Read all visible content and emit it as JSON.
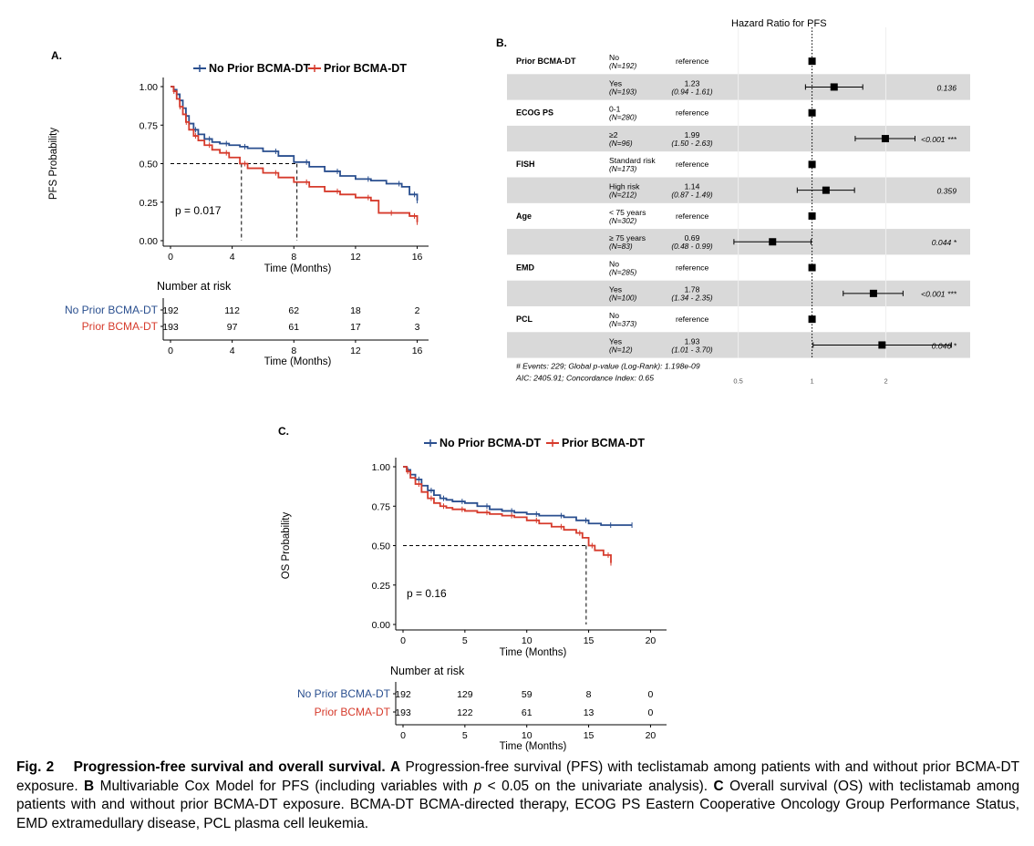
{
  "colors": {
    "no_prior": "#2a4f8f",
    "prior": "#d63b2c",
    "band": "#d9d9d9"
  },
  "caption": {
    "fig_label": "Fig. 2",
    "title": "Progression-free survival and overall survival.",
    "a_letter": "A",
    "a_text": "Progression-free survival (PFS) with teclistamab among patients with and without prior BCMA-DT exposure.",
    "b_letter": "B",
    "b_text_1": "Multivariable Cox Model for PFS (including variables with",
    "p_symbol": "p",
    "b_text_2": "< 0.05 on the univariate analysis).",
    "c_letter": "C",
    "c_text": "Overall survival (OS) with teclistamab among patients with and without prior BCMA-DT exposure. BCMA-DT BCMA-directed therapy, ECOG PS Eastern Cooperative Oncology Group Performance Status, EMD extramedullary disease, PCL plasma cell leukemia."
  },
  "chart_data": [
    {
      "type": "line",
      "panel_label": "A.",
      "ylabel": "PFS Probability",
      "xlabel": "Time (Months)",
      "xlim": [
        0,
        16.5
      ],
      "ylim": [
        0,
        1
      ],
      "xticks": [
        "0",
        "4",
        "8",
        "12",
        "16"
      ],
      "yticks": [
        "0.00",
        "0.25",
        "0.50",
        "0.75",
        "1.00"
      ],
      "legend": [
        "No Prior BCMA-DT",
        "Prior BCMA-DT"
      ],
      "legend_position": "top",
      "annotation": "p = 0.017",
      "median_lines": [
        4.6,
        8.2
      ],
      "series": [
        {
          "name": "No Prior BCMA-DT",
          "x": [
            0,
            0.2,
            0.4,
            0.6,
            0.8,
            1.0,
            1.2,
            1.5,
            1.8,
            2.2,
            2.7,
            3.2,
            3.8,
            4.5,
            5.0,
            6.0,
            7.0,
            8.0,
            9.0,
            10.0,
            11.0,
            12.0,
            13.0,
            14.0,
            15.0,
            15.5,
            16.0
          ],
          "values": [
            1.0,
            0.98,
            0.95,
            0.91,
            0.86,
            0.81,
            0.76,
            0.72,
            0.69,
            0.66,
            0.64,
            0.63,
            0.62,
            0.61,
            0.6,
            0.58,
            0.55,
            0.51,
            0.48,
            0.45,
            0.42,
            0.4,
            0.39,
            0.37,
            0.35,
            0.3,
            0.26
          ]
        },
        {
          "name": "Prior BCMA-DT",
          "x": [
            0,
            0.2,
            0.4,
            0.6,
            0.8,
            1.0,
            1.2,
            1.5,
            1.8,
            2.2,
            2.7,
            3.2,
            3.8,
            4.5,
            5.0,
            6.0,
            7.0,
            8.0,
            9.0,
            10.0,
            11.0,
            12.0,
            13.0,
            13.5,
            14.5,
            15.5,
            16.0
          ],
          "values": [
            1.0,
            0.97,
            0.92,
            0.87,
            0.82,
            0.77,
            0.72,
            0.68,
            0.65,
            0.62,
            0.59,
            0.57,
            0.54,
            0.5,
            0.47,
            0.44,
            0.41,
            0.38,
            0.35,
            0.32,
            0.3,
            0.28,
            0.26,
            0.18,
            0.18,
            0.16,
            0.12
          ]
        }
      ],
      "risk_table": {
        "title": "Number at risk",
        "xlabel": "Time (Months)",
        "rows": [
          {
            "label": "No Prior BCMA-DT",
            "values": [
              "192",
              "112",
              "62",
              "18",
              "2"
            ]
          },
          {
            "label": "Prior BCMA-DT",
            "values": [
              "193",
              "97",
              "61",
              "17",
              "3"
            ]
          }
        ]
      }
    },
    {
      "type": "forest",
      "panel_label": "B.",
      "title": "Hazard Ratio for PFS",
      "xscale": "log",
      "xticks": [
        {
          "v": 0.5,
          "t": "0.5"
        },
        {
          "v": 1,
          "t": "1"
        },
        {
          "v": 2,
          "t": "2"
        }
      ],
      "xlim": [
        0.3,
        3.3
      ],
      "rows": [
        {
          "var": "Prior BCMA-DT",
          "level": "No",
          "n": "(N=192)",
          "hr": "reference",
          "ci": "",
          "p": "",
          "est": 1
        },
        {
          "var": "",
          "level": "Yes",
          "n": "(N=193)",
          "hr": "1.23",
          "ci": "(0.94 - 1.61)",
          "p": "0.136",
          "est": 1.23,
          "lo": 0.94,
          "hi": 1.61
        },
        {
          "var": "ECOG PS",
          "level": "0-1",
          "n": "(N=280)",
          "hr": "reference",
          "ci": "",
          "p": "",
          "est": 1
        },
        {
          "var": "",
          "level": "≥2",
          "n": "(N=96)",
          "hr": "1.99",
          "ci": "(1.50 - 2.63)",
          "p": "<0.001 ***",
          "est": 1.99,
          "lo": 1.5,
          "hi": 2.63
        },
        {
          "var": "FISH",
          "level": "Standard risk",
          "n": "(N=173)",
          "hr": "reference",
          "ci": "",
          "p": "",
          "est": 1
        },
        {
          "var": "",
          "level": "High risk",
          "n": "(N=212)",
          "hr": "1.14",
          "ci": "(0.87 - 1.49)",
          "p": "0.359",
          "est": 1.14,
          "lo": 0.87,
          "hi": 1.49
        },
        {
          "var": "Age",
          "level": "< 75 years",
          "n": "(N=302)",
          "hr": "reference",
          "ci": "",
          "p": "",
          "est": 1
        },
        {
          "var": "",
          "level": "≥ 75 years",
          "n": "(N=83)",
          "hr": "0.69",
          "ci": "(0.48 - 0.99)",
          "p": "0.044 *",
          "est": 0.69,
          "lo": 0.48,
          "hi": 0.99
        },
        {
          "var": "EMD",
          "level": "No",
          "n": "(N=285)",
          "hr": "reference",
          "ci": "",
          "p": "",
          "est": 1
        },
        {
          "var": "",
          "level": "Yes",
          "n": "(N=100)",
          "hr": "1.78",
          "ci": "(1.34 - 2.35)",
          "p": "<0.001 ***",
          "est": 1.78,
          "lo": 1.34,
          "hi": 2.35
        },
        {
          "var": "PCL",
          "level": "No",
          "n": "(N=373)",
          "hr": "reference",
          "ci": "",
          "p": "",
          "est": 1
        },
        {
          "var": "",
          "level": "Yes",
          "n": "(N=12)",
          "hr": "1.93",
          "ci": "(1.01 - 3.70)",
          "p": "0.046 *",
          "est": 1.93,
          "lo": 1.01,
          "hi": 3.7
        }
      ],
      "footnotes": [
        "# Events: 229; Global p-value (Log-Rank): 1.198e-09",
        "AIC: 2405.91; Concordance Index: 0.65"
      ]
    },
    {
      "type": "line",
      "panel_label": "C.",
      "ylabel": "OS Probability",
      "xlabel": "Time (Months)",
      "xlim": [
        0,
        21
      ],
      "ylim": [
        0,
        1
      ],
      "xticks": [
        "0",
        "5",
        "10",
        "15",
        "20"
      ],
      "yticks": [
        "0.00",
        "0.25",
        "0.50",
        "0.75",
        "1.00"
      ],
      "legend": [
        "No Prior BCMA-DT",
        "Prior BCMA-DT"
      ],
      "legend_position": "top",
      "annotation": "p = 0.16",
      "median_lines": [
        14.8
      ],
      "series": [
        {
          "name": "No Prior BCMA-DT",
          "x": [
            0,
            0.3,
            0.6,
            1.0,
            1.5,
            2.0,
            2.5,
            3.0,
            3.5,
            4.0,
            5.0,
            6.0,
            7.0,
            8.0,
            9.0,
            10.0,
            11.0,
            12.0,
            13.0,
            14.0,
            15.0,
            16.0,
            17.0,
            18.5
          ],
          "values": [
            1.0,
            0.98,
            0.95,
            0.92,
            0.88,
            0.85,
            0.82,
            0.8,
            0.79,
            0.78,
            0.77,
            0.75,
            0.73,
            0.72,
            0.71,
            0.7,
            0.69,
            0.69,
            0.68,
            0.66,
            0.64,
            0.63,
            0.63,
            0.63
          ]
        },
        {
          "name": "Prior BCMA-DT",
          "x": [
            0,
            0.3,
            0.6,
            1.0,
            1.5,
            2.0,
            2.5,
            3.0,
            3.5,
            4.0,
            5.0,
            6.0,
            7.0,
            8.0,
            9.0,
            10.0,
            11.0,
            12.0,
            13.0,
            14.0,
            14.5,
            15.0,
            15.5,
            16.2,
            16.8
          ],
          "values": [
            1.0,
            0.97,
            0.93,
            0.89,
            0.84,
            0.8,
            0.77,
            0.75,
            0.74,
            0.73,
            0.72,
            0.71,
            0.7,
            0.69,
            0.68,
            0.66,
            0.64,
            0.62,
            0.6,
            0.58,
            0.55,
            0.5,
            0.47,
            0.44,
            0.39
          ]
        }
      ],
      "risk_table": {
        "title": "Number at risk",
        "xlabel": "Time (Months)",
        "rows": [
          {
            "label": "No Prior BCMA-DT",
            "values": [
              "192",
              "129",
              "59",
              "8",
              "0"
            ]
          },
          {
            "label": "Prior BCMA-DT",
            "values": [
              "193",
              "122",
              "61",
              "13",
              "0"
            ]
          }
        ]
      }
    }
  ]
}
